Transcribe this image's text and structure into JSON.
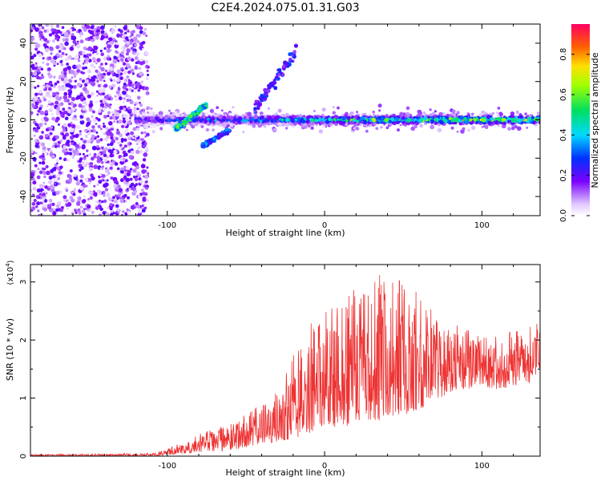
{
  "chart_data": [
    {
      "type": "heatmap",
      "title": "C2E4.2024.075.01.31.G03",
      "xlabel": "Height of straight line (km)",
      "ylabel": "Frequency (Hz)",
      "xlim": [
        -187,
        137
      ],
      "ylim": [
        -50,
        50
      ],
      "xticks": [
        -100,
        0,
        100
      ],
      "yticks": [
        -40,
        -20,
        0,
        20,
        40
      ],
      "xtick_labels": [
        "-100",
        "0",
        "100"
      ],
      "ytick_labels": [
        "-40",
        "-20",
        "0",
        "20",
        "40"
      ],
      "colorbar": {
        "label": "Normalized spectral amplitude",
        "range": [
          0,
          0.95
        ],
        "ticks": [
          0.0,
          0.2,
          0.4,
          0.6,
          0.8
        ],
        "tick_labels": [
          "0.0",
          "0.2",
          "0.4",
          "0.6",
          "0.8"
        ]
      },
      "description_regions": [
        {
          "name": "noise",
          "x": [
            -187,
            -112
          ],
          "freq": [
            -50,
            50
          ],
          "amplitude": 0.15
        },
        {
          "name": "main-band",
          "x": [
            -120,
            137
          ],
          "freq_center": 0,
          "amplitude_peak": 0.9
        },
        {
          "name": "upward-feature",
          "x": [
            -95,
            -75
          ],
          "freq": [
            -5,
            8
          ],
          "amplitude": 0.5
        },
        {
          "name": "downward-feature",
          "x": [
            -78,
            -60
          ],
          "freq": [
            -14,
            -5
          ],
          "amplitude": 0.3
        },
        {
          "name": "spike",
          "x": [
            -45,
            -18
          ],
          "freq": [
            5,
            36
          ],
          "amplitude": 0.25
        }
      ]
    },
    {
      "type": "line",
      "xlabel": "Height of straight line (km)",
      "ylabel": "SNR (10 * v/v)",
      "scale_label": "(x10",
      "scale_exp": "4",
      "scale_close": ")",
      "xlim": [
        -187,
        137
      ],
      "ylim": [
        0,
        3.3
      ],
      "xticks": [
        -100,
        0,
        100
      ],
      "yticks": [
        0,
        1,
        2,
        3
      ],
      "xtick_labels": [
        "-100",
        "0",
        "100"
      ],
      "ytick_labels": [
        "0",
        "1",
        "2",
        "3"
      ],
      "color": "#ee3333",
      "envelope": {
        "x": [
          -187,
          -110,
          -100,
          -85,
          -75,
          -60,
          -50,
          -40,
          -30,
          -20,
          -10,
          0,
          10,
          20,
          30,
          40,
          50,
          60,
          70,
          80,
          90,
          100,
          110,
          120,
          137
        ],
        "upper": [
          0.03,
          0.05,
          0.12,
          0.35,
          0.45,
          0.55,
          0.75,
          0.9,
          1.1,
          1.8,
          2.3,
          2.5,
          2.7,
          2.9,
          3.0,
          3.25,
          3.05,
          3.0,
          2.4,
          2.3,
          2.2,
          2.05,
          2.1,
          2.2,
          2.35
        ],
        "lower": [
          0.0,
          0.0,
          0.02,
          0.05,
          0.08,
          0.1,
          0.15,
          0.2,
          0.25,
          0.3,
          0.4,
          0.5,
          0.5,
          0.55,
          0.6,
          0.6,
          0.7,
          0.8,
          0.95,
          1.1,
          1.15,
          1.2,
          1.15,
          1.2,
          1.3
        ]
      }
    }
  ]
}
